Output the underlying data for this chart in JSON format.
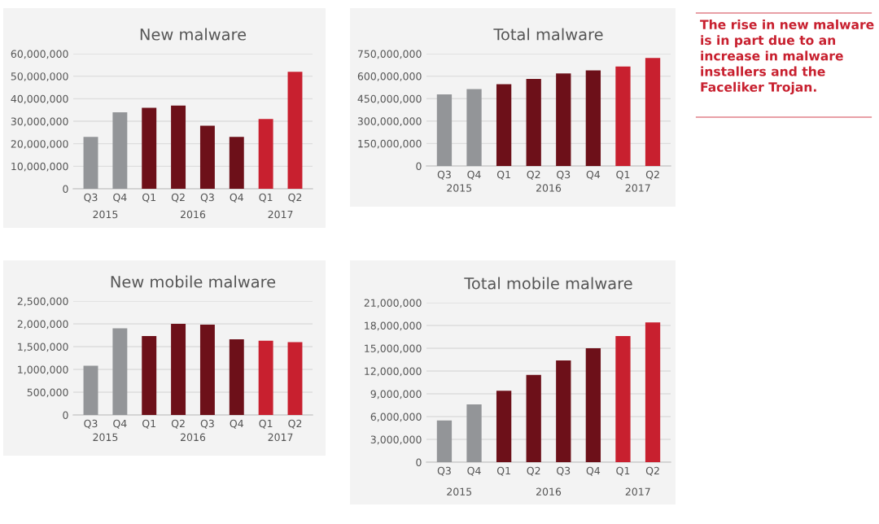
{
  "chart_data": [
    {
      "type": "bar",
      "title": "New malware",
      "categories": [
        "Q3",
        "Q4",
        "Q1",
        "Q2",
        "Q3",
        "Q4",
        "Q1",
        "Q2"
      ],
      "values": [
        23000000,
        34000000,
        36000000,
        37000000,
        28000000,
        23000000,
        31000000,
        52000000
      ],
      "colors": [
        "#939598",
        "#939598",
        "#6d1019",
        "#6d1019",
        "#6d1019",
        "#6d1019",
        "#c8202f",
        "#c8202f"
      ],
      "ylim": [
        0,
        60000000
      ],
      "yticks": [
        0,
        {
          "value": 10000000,
          "label": "10,000,000"
        },
        {
          "value": 20000000,
          "label": "20,000,000"
        },
        {
          "value": 30000000,
          "label": "30,000,000"
        },
        {
          "value": 40000000,
          "label": "40,000,000"
        },
        {
          "value": 50000000,
          "label": "50,000,000"
        },
        {
          "value": 60000000,
          "label": "60,000,000"
        }
      ],
      "grid": "y",
      "annotations": [
        "2015",
        "2016",
        "2017"
      ]
    },
    {
      "type": "bar",
      "title": "Total malware",
      "categories": [
        "Q3",
        "Q4",
        "Q1",
        "Q2",
        "Q3",
        "Q4",
        "Q1",
        "Q2"
      ],
      "values": [
        478000000,
        514000000,
        546000000,
        582000000,
        618000000,
        639000000,
        664000000,
        721000000
      ],
      "colors": [
        "#939598",
        "#939598",
        "#6d1019",
        "#6d1019",
        "#6d1019",
        "#6d1019",
        "#c8202f",
        "#c8202f"
      ],
      "ylim": [
        0,
        750000000
      ],
      "yticks": [
        0,
        {
          "value": 150000000,
          "label": "150,000,000"
        },
        {
          "value": 300000000,
          "label": "300,000,000"
        },
        {
          "value": 450000000,
          "label": "450,000,000"
        },
        {
          "value": 600000000,
          "label": "600,000,000"
        },
        {
          "value": 750000000,
          "label": "750,000,000"
        }
      ],
      "grid": "y",
      "annotations": [
        "2015",
        "2016",
        "2017"
      ]
    },
    {
      "type": "other",
      "annotations": [
        "The rise in new malware is in part due to an increase in malware installers and the Faceliker Trojan."
      ]
    },
    {
      "type": "bar",
      "title": "New mobile malware",
      "categories": [
        "Q3",
        "Q4",
        "Q1",
        "Q2",
        "Q3",
        "Q4",
        "Q1",
        "Q2"
      ],
      "values": [
        1080000,
        1900000,
        1730000,
        2000000,
        1980000,
        1660000,
        1630000,
        1600000
      ],
      "colors": [
        "#939598",
        "#939598",
        "#6d1019",
        "#6d1019",
        "#6d1019",
        "#6d1019",
        "#c8202f",
        "#c8202f"
      ],
      "ylim": [
        0,
        2500000
      ],
      "yticks": [
        0,
        {
          "value": 500000,
          "label": "500,000"
        },
        {
          "value": 1000000,
          "label": "1,000,000"
        },
        {
          "value": 1500000,
          "label": "1,500,000"
        },
        {
          "value": 2000000,
          "label": "2,000,000"
        },
        {
          "value": 2500000,
          "label": "2,500,000"
        }
      ],
      "grid": "y",
      "annotations": [
        "2015",
        "2016",
        "2017"
      ]
    },
    {
      "type": "bar",
      "title": "Total mobile malware",
      "categories": [
        "Q3",
        "Q4",
        "Q1",
        "Q2",
        "Q3",
        "Q4",
        "Q1",
        "Q2"
      ],
      "values": [
        5500000,
        7600000,
        9400000,
        11500000,
        13400000,
        15000000,
        16600000,
        18400000
      ],
      "colors": [
        "#939598",
        "#939598",
        "#6d1019",
        "#6d1019",
        "#6d1019",
        "#6d1019",
        "#c8202f",
        "#c8202f"
      ],
      "ylim": [
        0,
        21000000
      ],
      "yticks": [
        0,
        {
          "value": 3000000,
          "label": "3,000,000"
        },
        {
          "value": 6000000,
          "label": "6,000,000"
        },
        {
          "value": 9000000,
          "label": "9,000,000"
        },
        {
          "value": 12000000,
          "label": "12,000,000"
        },
        {
          "value": 15000000,
          "label": "15,000,000"
        },
        {
          "value": 18000000,
          "label": "18,000,000"
        },
        {
          "value": 21000000,
          "label": "21,000,000"
        }
      ],
      "grid": "y",
      "annotations": [
        "2015",
        "2016",
        "2017"
      ]
    }
  ]
}
